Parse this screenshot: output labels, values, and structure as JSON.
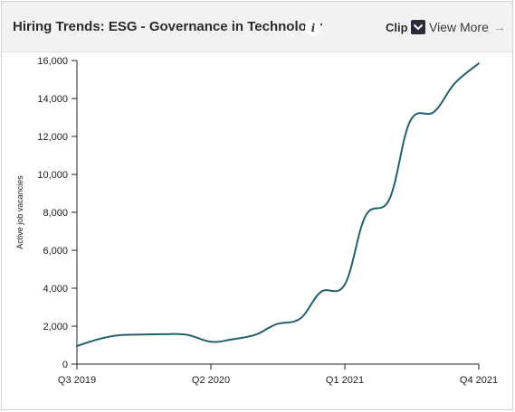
{
  "header": {
    "title": "Hiring Trends: ESG - Governance in Technology",
    "info_icon": "i",
    "clip_label": "Clip",
    "view_more_label": "View More",
    "arrow": "→"
  },
  "colors": {
    "line": "#22606e",
    "header_bg": "#f2f2f2"
  },
  "chart_data": {
    "type": "line",
    "ylabel": "Active job vacancies",
    "xlabel": "",
    "ylim": [
      0,
      16000
    ],
    "yticks": [
      0,
      2000,
      4000,
      6000,
      8000,
      10000,
      12000,
      14000,
      16000
    ],
    "ytick_labels": [
      "0",
      "2,000",
      "4,000",
      "6,000",
      "8,000",
      "10,000",
      "12,000",
      "14,000",
      "16,000"
    ],
    "xtick_labels": [
      "Q3 2019",
      "Q2 2020",
      "Q1 2021",
      "Q4 2021"
    ],
    "xlim_weeks": [
      0,
      117
    ],
    "xtick_weeks": [
      0,
      39,
      78,
      117
    ],
    "series": [
      {
        "values_x_weeks": [
          0,
          6,
          12,
          19,
          25,
          32,
          39,
          45,
          52,
          58,
          65,
          71,
          78,
          84,
          91,
          97,
          104,
          110,
          117
        ],
        "values": [
          950,
          1300,
          1520,
          1560,
          1580,
          1550,
          1180,
          1300,
          1550,
          2100,
          2400,
          3800,
          4200,
          7800,
          8700,
          12800,
          13300,
          14800,
          15850
        ]
      }
    ]
  }
}
